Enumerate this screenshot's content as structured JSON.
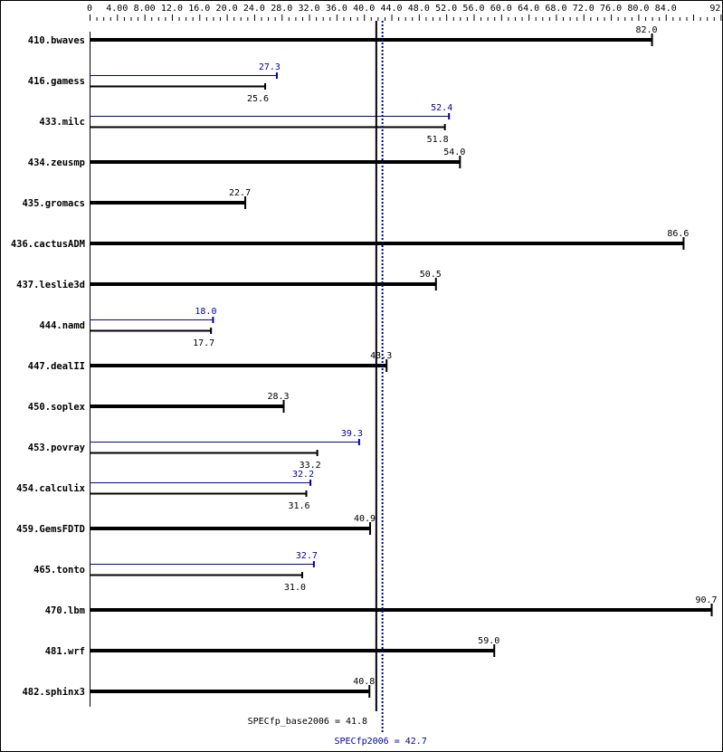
{
  "chart_data": {
    "type": "bar",
    "orientation": "horizontal",
    "xlim": [
      0,
      92
    ],
    "tick_labels": [
      "0",
      "4.00",
      "8.00",
      "12.0",
      "16.0",
      "20.0",
      "24.0",
      "28.0",
      "32.0",
      "36.0",
      "40.0",
      "44.0",
      "48.0",
      "52.0",
      "56.0",
      "60.0",
      "64.0",
      "68.0",
      "72.0",
      "76.0",
      "80.0",
      "84.0",
      "92.0"
    ],
    "tick_values": [
      0,
      4,
      8,
      12,
      16,
      20,
      24,
      28,
      32,
      36,
      40,
      44,
      48,
      52,
      56,
      60,
      64,
      68,
      72,
      76,
      80,
      84,
      92
    ],
    "categories": [
      "410.bwaves",
      "416.gamess",
      "433.milc",
      "434.zeusmp",
      "435.gromacs",
      "436.cactusADM",
      "437.leslie3d",
      "444.namd",
      "447.dealII",
      "450.soplex",
      "453.povray",
      "454.calculix",
      "459.GemsFDTD",
      "465.tonto",
      "470.lbm",
      "481.wrf",
      "482.sphinx3"
    ],
    "series": [
      {
        "name": "SPECfp_base2006",
        "color": "#000000",
        "values": [
          82.0,
          25.6,
          51.8,
          54.0,
          22.7,
          86.6,
          50.5,
          17.7,
          43.3,
          28.3,
          33.2,
          31.6,
          40.9,
          31.0,
          90.7,
          59.0,
          40.8
        ]
      },
      {
        "name": "SPECfp2006",
        "color": "#0000aa",
        "values": [
          null,
          27.3,
          52.4,
          null,
          null,
          null,
          null,
          18.0,
          null,
          null,
          39.3,
          32.2,
          null,
          32.7,
          null,
          null,
          null
        ]
      }
    ],
    "reference_lines": [
      {
        "label": "SPECfp_base2006 = 41.8",
        "value": 41.8,
        "color": "#000000"
      },
      {
        "label": "SPECfp2006 = 42.7",
        "value": 42.7,
        "color": "#0000aa"
      }
    ]
  }
}
